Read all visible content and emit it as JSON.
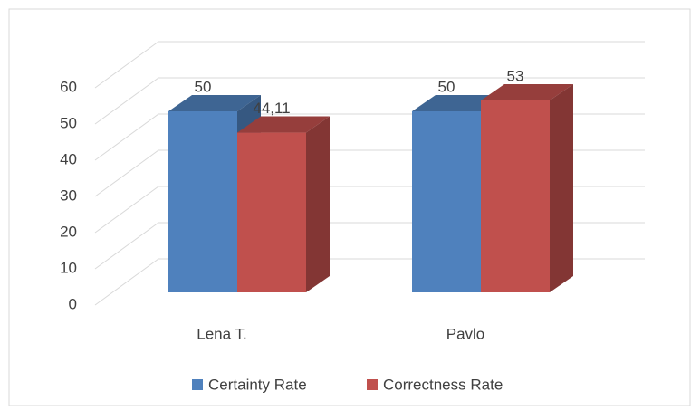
{
  "chart_data": {
    "type": "bar3d",
    "categories": [
      "Lena T.",
      "Pavlo"
    ],
    "series": [
      {
        "name": "Certainty Rate",
        "color": "#4f81bd",
        "values": [
          50,
          50
        ]
      },
      {
        "name": "Correctness Rate",
        "color": "#c0504d",
        "values": [
          44.11,
          53
        ],
        "value_labels": [
          "44,11",
          "53"
        ]
      }
    ],
    "ylim": [
      0,
      60
    ],
    "yticks": [
      0,
      10,
      20,
      30,
      40,
      50,
      60
    ],
    "grid": true,
    "legend": "bottom"
  }
}
